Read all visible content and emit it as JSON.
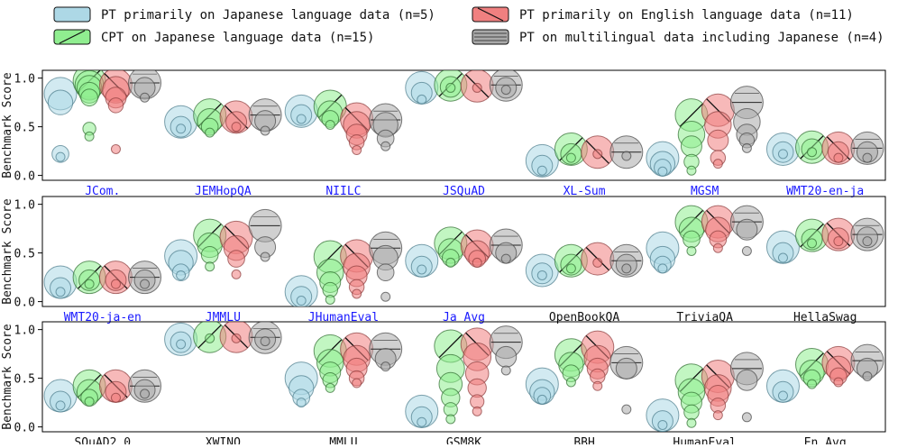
{
  "chart_data": {
    "type": "scatter",
    "ylabel": "Benchmark Score",
    "ylim": [
      -0.05,
      1.08
    ],
    "yticks": [
      0.0,
      0.5,
      1.0
    ],
    "ytick_labels": [
      "0.0",
      "0.5",
      "1.0"
    ],
    "legend_position": "top",
    "series": [
      {
        "key": "jp",
        "name": "PT primarily on Japanese language data  (n=5)",
        "color": "#add8e6",
        "edge": "#4a7a8a",
        "hatch": "none"
      },
      {
        "key": "en",
        "name": "PT primarily on English language data (n=11)",
        "color": "#f08080",
        "edge": "#8a3a3a",
        "hatch": "backslash"
      },
      {
        "key": "cpt",
        "name": "CPT on Japanese language data (n=15)",
        "color": "#90ee90",
        "edge": "#2e6b2e",
        "hatch": "slash"
      },
      {
        "key": "ml",
        "name": "PT on multilingual data including Japanese (n=4)",
        "color": "#a9a9a9",
        "edge": "#444444",
        "hatch": "horizontal"
      }
    ],
    "rows": [
      [
        {
          "label": "JCom.",
          "ja": true,
          "jp": [
            0.84,
            0.75,
            0.22,
            0.19
          ],
          "cpt": [
            0.97,
            0.93,
            0.9,
            0.85,
            0.8,
            0.48,
            0.4
          ],
          "en": [
            0.93,
            0.88,
            0.8,
            0.72,
            0.27
          ],
          "ml": [
            0.95,
            0.9,
            0.8
          ]
        },
        {
          "label": "JEMHopQA",
          "ja": true,
          "jp": [
            0.55,
            0.5,
            0.48
          ],
          "cpt": [
            0.62,
            0.56,
            0.5,
            0.44
          ],
          "en": [
            0.6,
            0.55,
            0.5
          ],
          "ml": [
            0.62,
            0.56,
            0.46
          ]
        },
        {
          "label": "NIILC",
          "ja": true,
          "jp": [
            0.66,
            0.62,
            0.58
          ],
          "cpt": [
            0.71,
            0.64,
            0.58,
            0.52
          ],
          "en": [
            0.58,
            0.52,
            0.42,
            0.34,
            0.26
          ],
          "ml": [
            0.57,
            0.52,
            0.38,
            0.3
          ]
        },
        {
          "label": "JSQuAD",
          "ja": true,
          "jp": [
            0.9,
            0.85,
            0.78
          ],
          "cpt": [
            0.93,
            0.91,
            0.9
          ],
          "en": [
            0.92,
            0.9
          ],
          "ml": [
            0.93,
            0.9,
            0.88
          ]
        },
        {
          "label": "XL-Sum",
          "ja": true,
          "jp": [
            0.15,
            0.1,
            0.05
          ],
          "cpt": [
            0.27,
            0.22,
            0.18
          ],
          "en": [
            0.24,
            0.22
          ],
          "ml": [
            0.24,
            0.2
          ]
        },
        {
          "label": "MGSM",
          "ja": true,
          "jp": [
            0.18,
            0.12,
            0.08,
            0.04
          ],
          "cpt": [
            0.62,
            0.42,
            0.3,
            0.14,
            0.05
          ],
          "en": [
            0.67,
            0.52,
            0.36,
            0.18,
            0.12
          ],
          "ml": [
            0.75,
            0.55,
            0.42,
            0.36,
            0.28
          ]
        },
        {
          "label": "WMT20-en-ja",
          "ja": true,
          "jp": [
            0.27,
            0.24,
            0.22
          ],
          "cpt": [
            0.29,
            0.27,
            0.24
          ],
          "en": [
            0.28,
            0.24,
            0.18
          ],
          "ml": [
            0.28,
            0.24,
            0.18
          ]
        }
      ],
      [
        {
          "label": "WMT20-ja-en",
          "ja": true,
          "jp": [
            0.2,
            0.14,
            0.1
          ],
          "cpt": [
            0.25,
            0.22,
            0.18
          ],
          "en": [
            0.25,
            0.22,
            0.18
          ],
          "ml": [
            0.25,
            0.22,
            0.18
          ]
        },
        {
          "label": "JMMLU",
          "ja": true,
          "jp": [
            0.47,
            0.4,
            0.3,
            0.27
          ],
          "cpt": [
            0.68,
            0.58,
            0.48,
            0.36
          ],
          "en": [
            0.66,
            0.55,
            0.44,
            0.28
          ],
          "ml": [
            0.78,
            0.56,
            0.46
          ]
        },
        {
          "label": "JHumanEval",
          "ja": true,
          "jp": [
            0.1,
            0.05,
            0.01
          ],
          "cpt": [
            0.46,
            0.3,
            0.2,
            0.12,
            0.02
          ],
          "en": [
            0.47,
            0.36,
            0.26,
            0.15,
            0.08
          ],
          "ml": [
            0.55,
            0.45,
            0.3,
            0.05
          ]
        },
        {
          "label": "Ja Avg",
          "ja": true,
          "jp": [
            0.42,
            0.36,
            0.33
          ],
          "cpt": [
            0.6,
            0.52,
            0.45,
            0.4
          ],
          "en": [
            0.57,
            0.5,
            0.44,
            0.4
          ],
          "ml": [
            0.58,
            0.5,
            0.44
          ]
        },
        {
          "label": "OpenBookQA",
          "ja": false,
          "jp": [
            0.32,
            0.29,
            0.27
          ],
          "cpt": [
            0.42,
            0.38,
            0.34
          ],
          "en": [
            0.44,
            0.4
          ],
          "ml": [
            0.42,
            0.38,
            0.34
          ]
        },
        {
          "label": "TriviaQA",
          "ja": false,
          "jp": [
            0.55,
            0.44,
            0.38,
            0.34
          ],
          "cpt": [
            0.82,
            0.74,
            0.64,
            0.52
          ],
          "en": [
            0.82,
            0.74,
            0.64,
            0.55
          ],
          "ml": [
            0.82,
            0.74,
            0.52
          ]
        },
        {
          "label": "HellaSwag",
          "ja": false,
          "jp": [
            0.56,
            0.5,
            0.45
          ],
          "cpt": [
            0.68,
            0.64,
            0.6
          ],
          "en": [
            0.69,
            0.65,
            0.62
          ],
          "ml": [
            0.69,
            0.66,
            0.62
          ]
        }
      ],
      [
        {
          "label": "SQuAD2.0",
          "ja": false,
          "jp": [
            0.32,
            0.26,
            0.22
          ],
          "cpt": [
            0.42,
            0.36,
            0.3,
            0.26
          ],
          "en": [
            0.42,
            0.36,
            0.3
          ],
          "ml": [
            0.42,
            0.38,
            0.34
          ]
        },
        {
          "label": "XWINO",
          "ja": false,
          "jp": [
            0.9,
            0.87,
            0.85
          ],
          "cpt": [
            0.93,
            0.91
          ],
          "en": [
            0.93,
            0.91
          ],
          "ml": [
            0.92,
            0.9,
            0.88
          ]
        },
        {
          "label": "MMLU",
          "ja": false,
          "jp": [
            0.5,
            0.4,
            0.3,
            0.25
          ],
          "cpt": [
            0.78,
            0.66,
            0.56,
            0.48,
            0.4
          ],
          "en": [
            0.8,
            0.7,
            0.6,
            0.5,
            0.45
          ],
          "ml": [
            0.8,
            0.7,
            0.62
          ]
        },
        {
          "label": "GSM8K",
          "ja": false,
          "jp": [
            0.16,
            0.1,
            0.05
          ],
          "cpt": [
            0.83,
            0.6,
            0.44,
            0.3,
            0.18,
            0.08
          ],
          "en": [
            0.85,
            0.72,
            0.55,
            0.4,
            0.26,
            0.16
          ],
          "ml": [
            0.87,
            0.72,
            0.58
          ]
        },
        {
          "label": "BBH",
          "ja": false,
          "jp": [
            0.44,
            0.36,
            0.32,
            0.28
          ],
          "cpt": [
            0.74,
            0.64,
            0.55,
            0.46
          ],
          "en": [
            0.82,
            0.7,
            0.6,
            0.52,
            0.42
          ],
          "ml": [
            0.66,
            0.6,
            0.18
          ]
        },
        {
          "label": "HumanEval",
          "ja": false,
          "jp": [
            0.12,
            0.06,
            0.02
          ],
          "cpt": [
            0.48,
            0.36,
            0.25,
            0.15,
            0.04
          ],
          "en": [
            0.52,
            0.4,
            0.32,
            0.22,
            0.12
          ],
          "ml": [
            0.6,
            0.48,
            0.1
          ]
        },
        {
          "label": "En Avg",
          "ja": false,
          "jp": [
            0.42,
            0.36,
            0.32
          ],
          "cpt": [
            0.64,
            0.56,
            0.5,
            0.44
          ],
          "en": [
            0.66,
            0.6,
            0.52,
            0.46
          ],
          "ml": [
            0.68,
            0.6,
            0.52
          ]
        }
      ]
    ]
  }
}
